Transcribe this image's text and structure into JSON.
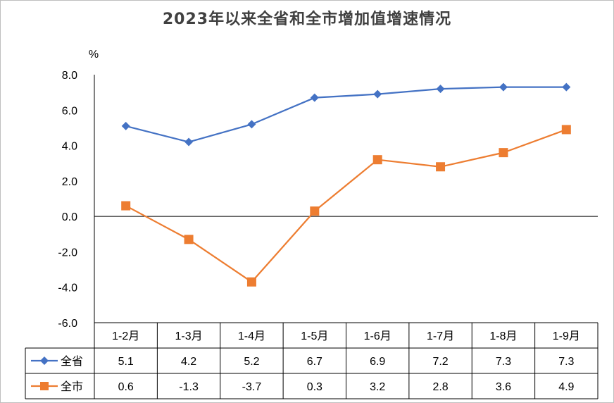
{
  "chart_data": {
    "type": "line",
    "title": "2023年以来全省和全市增加值增速情况",
    "ylabel": "%",
    "ylim": [
      -6,
      8
    ],
    "yticks": [
      "8.0",
      "6.0",
      "4.0",
      "2.0",
      "0.0",
      "-2.0",
      "-4.0",
      "-6.0"
    ],
    "categories": [
      "1-2月",
      "1-3月",
      "1-4月",
      "1-5月",
      "1-6月",
      "1-7月",
      "1-8月",
      "1-9月"
    ],
    "series": [
      {
        "name": "全省",
        "values": [
          5.1,
          4.2,
          5.2,
          6.7,
          6.9,
          7.2,
          7.3,
          7.3
        ],
        "labels": [
          "5.1",
          "4.2",
          "5.2",
          "6.7",
          "6.9",
          "7.2",
          "7.3",
          "7.3"
        ],
        "color": "#4472c4",
        "marker": "diamond"
      },
      {
        "name": "全市",
        "values": [
          0.6,
          -1.3,
          -3.7,
          0.3,
          3.2,
          2.8,
          3.6,
          4.9
        ],
        "labels": [
          "0.6",
          "-1.3",
          "-3.7",
          "0.3",
          "3.2",
          "2.8",
          "3.6",
          "4.9"
        ],
        "color": "#ed7d31",
        "marker": "square"
      }
    ],
    "grid": false,
    "legend": "data-table"
  }
}
